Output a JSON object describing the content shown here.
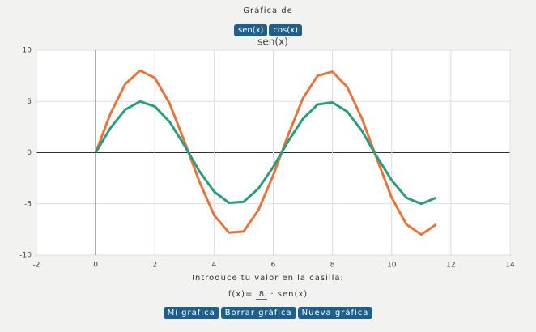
{
  "header": {
    "title": "Gráfica de",
    "buttons": [
      "sen(x)",
      "cos(x)"
    ]
  },
  "chart_data": {
    "type": "line",
    "title": "sen(x)",
    "x": [
      0,
      0.5,
      1,
      1.5,
      2,
      2.5,
      3,
      3.5,
      4,
      4.5,
      5,
      5.5,
      6,
      6.5,
      7,
      7.5,
      8,
      8.5,
      9,
      9.5,
      10,
      10.5,
      11,
      11.5
    ],
    "series": [
      {
        "color": "#e8743b",
        "values": [
          0,
          3.8,
          6.7,
          8.0,
          7.3,
          4.8,
          1.1,
          -2.8,
          -6.1,
          -7.8,
          -7.7,
          -5.6,
          -2.2,
          1.7,
          5.3,
          7.5,
          7.9,
          6.4,
          3.3,
          -0.6,
          -4.4,
          -7.0,
          -8.0,
          -7.0
        ]
      },
      {
        "color": "#2a9d7f",
        "values": [
          0,
          2.4,
          4.2,
          5.0,
          4.5,
          3.0,
          0.7,
          -1.8,
          -3.8,
          -4.9,
          -4.8,
          -3.5,
          -1.4,
          1.1,
          3.3,
          4.7,
          4.9,
          4.0,
          2.1,
          -0.4,
          -2.7,
          -4.4,
          -5.0,
          -4.4
        ]
      }
    ],
    "xlim": [
      -2,
      14
    ],
    "ylim": [
      -10,
      10
    ],
    "xticks": [
      -2,
      0,
      2,
      4,
      6,
      8,
      10,
      12,
      14
    ],
    "yticks": [
      -10,
      -5,
      0,
      5,
      10
    ],
    "grid": true
  },
  "form": {
    "prompt": "Introduce tu valor en la casilla:",
    "prefix": "f(x)=",
    "input": "8",
    "suffix": "· sen(x)"
  },
  "buttons": [
    "Mi gráfica",
    "Borrar gráfica",
    "Nueva gráfica"
  ]
}
